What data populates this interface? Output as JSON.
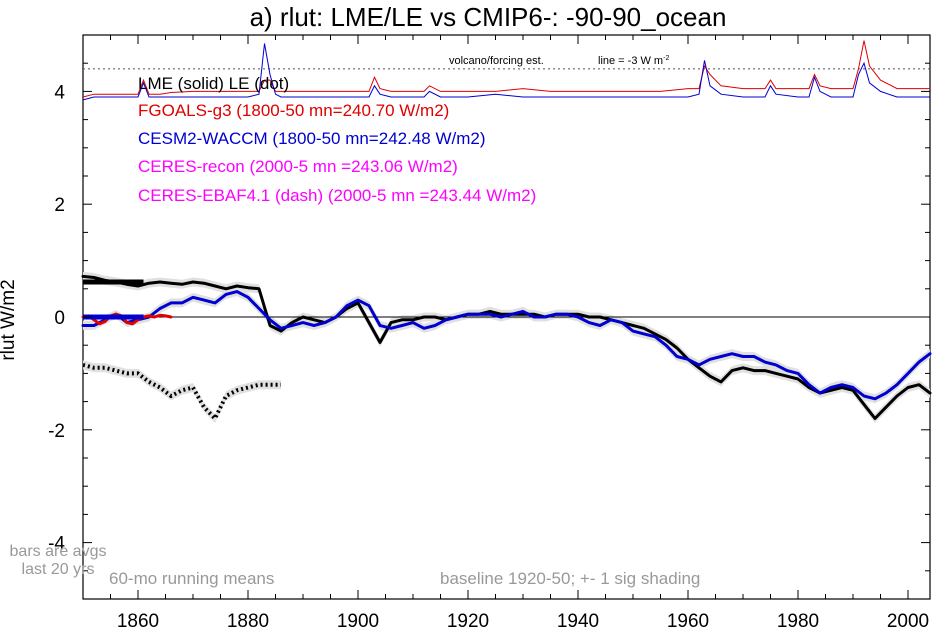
{
  "chart_data": {
    "type": "line",
    "title": "a) rlut: LME/LE vs CMIP6-: -90-90_ocean",
    "ylabel": "rlut W/m2",
    "xlabel": "",
    "xlim": [
      1850,
      2004
    ],
    "ylim": [
      -5,
      5
    ],
    "x_ticks": [
      1860,
      1880,
      1900,
      1920,
      1940,
      1960,
      1980,
      2000
    ],
    "y_ticks": [
      4,
      2,
      0,
      -2,
      -4
    ],
    "y_tick_labels": [
      "4",
      "2",
      "0",
      "-2",
      "-4"
    ],
    "zero_line": true,
    "legend_entries": [
      {
        "text": "LME (solid)   LE (dot)",
        "color": "#000000"
      },
      {
        "text": "FGOALS-g3 (1800-50 mn=240.70 W/m2)",
        "color": "#e00000"
      },
      {
        "text": "CESM2-WACCM (1800-50 mn=242.48 W/m2)",
        "color": "#0000d0"
      },
      {
        "text": "CERES-recon (2000-5 mn =243.06 W/m2)",
        "color": "#ff00ff"
      },
      {
        "text": "CERES-EBAF4.1 (dash) (2000-5 mn =243.44 W/m2)",
        "color": "#ff00ff"
      }
    ],
    "annotations": {
      "volcano": "volcano/forcing est.",
      "line": "line = -3 W m",
      "line_sup": "-2",
      "bars1": "bars are avgs",
      "bars2": "last 20 yrs",
      "running": "60-mo running means",
      "baseline": "baseline 1920-50; +- 1 sig shading"
    },
    "forcing_reference_level": 4.4,
    "series": [
      {
        "name": "LME (solid)",
        "color": "#000000",
        "style": "solid",
        "x": [
          1850,
          1852,
          1854,
          1856,
          1858,
          1860,
          1862,
          1864,
          1866,
          1868,
          1870,
          1872,
          1874,
          1876,
          1878,
          1880,
          1882,
          1884,
          1886,
          1888,
          1890,
          1892,
          1894,
          1896,
          1898,
          1900,
          1902,
          1904,
          1906,
          1908,
          1910,
          1912,
          1914,
          1916,
          1918,
          1920,
          1922,
          1924,
          1926,
          1928,
          1930,
          1932,
          1934,
          1936,
          1938,
          1940,
          1942,
          1944,
          1946,
          1948,
          1950,
          1952,
          1954,
          1956,
          1958,
          1960,
          1962,
          1964,
          1966,
          1968,
          1970,
          1972,
          1974,
          1976,
          1978,
          1980,
          1982,
          1984,
          1986,
          1988,
          1990,
          1992,
          1994,
          1996,
          1998,
          2000,
          2002,
          2004
        ],
        "values": [
          0.72,
          0.7,
          0.65,
          0.62,
          0.58,
          0.55,
          0.6,
          0.62,
          0.6,
          0.58,
          0.62,
          0.6,
          0.55,
          0.5,
          0.55,
          0.52,
          0.5,
          -0.15,
          -0.25,
          -0.1,
          0.0,
          -0.05,
          -0.1,
          0.0,
          0.15,
          0.25,
          -0.1,
          -0.45,
          -0.1,
          -0.05,
          -0.05,
          0.0,
          0.0,
          -0.05,
          0.0,
          0.05,
          0.05,
          0.1,
          0.05,
          0.05,
          0.05,
          0.05,
          0.0,
          0.05,
          0.05,
          0.05,
          0.0,
          0.0,
          -0.05,
          -0.1,
          -0.15,
          -0.2,
          -0.3,
          -0.4,
          -0.55,
          -0.75,
          -0.9,
          -1.05,
          -1.15,
          -0.95,
          -0.9,
          -0.95,
          -0.95,
          -1.0,
          -1.05,
          -1.1,
          -1.25,
          -1.35,
          -1.3,
          -1.25,
          -1.3,
          -1.55,
          -1.8,
          -1.6,
          -1.4,
          -1.25,
          -1.2,
          -1.35
        ]
      },
      {
        "name": "LE (dot)",
        "color": "#000000",
        "style": "dot",
        "x": [
          1850,
          1852,
          1854,
          1856,
          1858,
          1860,
          1862,
          1864,
          1866,
          1868,
          1870,
          1872,
          1874,
          1876,
          1878,
          1880,
          1882,
          1884,
          1886
        ],
        "values": [
          -0.85,
          -0.9,
          -0.9,
          -0.95,
          -1.0,
          -1.0,
          -1.15,
          -1.25,
          -1.4,
          -1.3,
          -1.25,
          -1.6,
          -1.8,
          -1.4,
          -1.3,
          -1.25,
          -1.2,
          -1.2,
          -1.2
        ]
      },
      {
        "name": "CESM2-WACCM",
        "color": "#0000d0",
        "style": "solid",
        "x": [
          1850,
          1852,
          1854,
          1856,
          1858,
          1860,
          1862,
          1864,
          1866,
          1868,
          1870,
          1872,
          1874,
          1876,
          1878,
          1880,
          1882,
          1884,
          1886,
          1888,
          1890,
          1892,
          1894,
          1896,
          1898,
          1900,
          1902,
          1904,
          1906,
          1908,
          1910,
          1912,
          1914,
          1916,
          1918,
          1920,
          1922,
          1924,
          1926,
          1928,
          1930,
          1932,
          1934,
          1936,
          1938,
          1940,
          1942,
          1944,
          1946,
          1948,
          1950,
          1952,
          1954,
          1956,
          1958,
          1960,
          1962,
          1964,
          1966,
          1968,
          1970,
          1972,
          1974,
          1976,
          1978,
          1980,
          1982,
          1984,
          1986,
          1988,
          1990,
          1992,
          1994,
          1996,
          1998,
          2000,
          2002,
          2004
        ],
        "values": [
          -0.15,
          -0.15,
          -0.05,
          0.05,
          -0.1,
          -0.05,
          0.0,
          0.15,
          0.25,
          0.25,
          0.35,
          0.3,
          0.25,
          0.4,
          0.45,
          0.35,
          0.15,
          -0.05,
          -0.2,
          -0.15,
          -0.1,
          -0.15,
          -0.1,
          0.0,
          0.2,
          0.3,
          0.2,
          -0.15,
          -0.2,
          -0.15,
          -0.1,
          -0.2,
          -0.15,
          -0.05,
          0.0,
          0.05,
          0.05,
          0.05,
          0.0,
          0.05,
          0.1,
          0.0,
          0.0,
          0.05,
          0.05,
          0.0,
          -0.1,
          -0.15,
          -0.05,
          -0.1,
          -0.25,
          -0.3,
          -0.35,
          -0.5,
          -0.7,
          -0.75,
          -0.85,
          -0.75,
          -0.7,
          -0.65,
          -0.7,
          -0.7,
          -0.8,
          -0.85,
          -0.95,
          -1.0,
          -1.2,
          -1.35,
          -1.25,
          -1.2,
          -1.25,
          -1.4,
          -1.45,
          -1.35,
          -1.2,
          -1.0,
          -0.8,
          -0.65
        ]
      },
      {
        "name": "FGOALS-g3",
        "color": "#e00000",
        "style": "solid",
        "x": [
          1850,
          1851,
          1852,
          1853,
          1854,
          1855,
          1856,
          1857,
          1858,
          1859,
          1860,
          1861,
          1862,
          1863,
          1864,
          1865,
          1866
        ],
        "values": [
          0.0,
          0.02,
          -0.05,
          -0.12,
          -0.08,
          0.02,
          0.05,
          0.02,
          -0.1,
          -0.12,
          -0.05,
          0.0,
          0.02,
          0.0,
          0.03,
          0.02,
          0.0
        ]
      }
    ],
    "shading_band": 0.08,
    "forcing_series": [
      {
        "name": "FGOALS-g3 forcing",
        "color": "#e00000",
        "x": [
          1850,
          1852,
          1855,
          1858,
          1860,
          1861,
          1862,
          1864,
          1866,
          1870,
          1875,
          1880,
          1882,
          1883,
          1884,
          1885,
          1886,
          1890,
          1895,
          1900,
          1902,
          1903,
          1904,
          1906,
          1910,
          1912,
          1913,
          1915,
          1920,
          1925,
          1930,
          1935,
          1940,
          1945,
          1950,
          1955,
          1960,
          1962,
          1963,
          1964,
          1966,
          1970,
          1974,
          1975,
          1976,
          1980,
          1982,
          1983,
          1984,
          1986,
          1990,
          1991,
          1992,
          1993,
          1995,
          1998,
          2000,
          2004
        ],
        "values": [
          3.9,
          3.95,
          3.95,
          3.95,
          3.95,
          4.2,
          3.95,
          3.95,
          3.98,
          4.0,
          4.0,
          4.0,
          4.0,
          4.2,
          4.2,
          4.0,
          4.0,
          4.0,
          4.0,
          4.0,
          4.0,
          4.25,
          4.05,
          4.0,
          4.0,
          4.0,
          4.1,
          4.0,
          4.0,
          4.0,
          4.05,
          4.0,
          4.0,
          4.0,
          4.0,
          4.0,
          4.05,
          4.05,
          4.45,
          4.3,
          4.1,
          4.05,
          4.05,
          4.2,
          4.05,
          4.05,
          4.05,
          4.3,
          4.1,
          4.05,
          4.05,
          4.4,
          4.9,
          4.45,
          4.2,
          4.05,
          4.05,
          4.05
        ]
      },
      {
        "name": "CESM2-WACCM forcing",
        "color": "#0000d0",
        "x": [
          1850,
          1852,
          1855,
          1858,
          1860,
          1861,
          1862,
          1864,
          1866,
          1870,
          1875,
          1880,
          1882,
          1883,
          1884,
          1885,
          1886,
          1890,
          1895,
          1900,
          1902,
          1903,
          1904,
          1906,
          1910,
          1912,
          1913,
          1915,
          1920,
          1925,
          1930,
          1935,
          1940,
          1945,
          1950,
          1955,
          1960,
          1962,
          1963,
          1964,
          1966,
          1970,
          1974,
          1975,
          1976,
          1980,
          1982,
          1983,
          1984,
          1986,
          1990,
          1991,
          1992,
          1993,
          1995,
          1998,
          2000,
          2004
        ],
        "values": [
          3.85,
          3.9,
          3.9,
          3.9,
          3.9,
          4.15,
          3.9,
          3.9,
          3.9,
          3.9,
          3.9,
          3.9,
          3.95,
          4.85,
          4.3,
          3.95,
          3.9,
          3.9,
          3.9,
          3.9,
          3.9,
          4.1,
          3.95,
          3.9,
          3.9,
          3.9,
          4.0,
          3.9,
          3.9,
          3.95,
          3.9,
          3.9,
          3.9,
          3.9,
          3.9,
          3.9,
          3.9,
          3.95,
          4.55,
          4.1,
          3.95,
          3.9,
          3.9,
          4.1,
          3.95,
          3.9,
          3.9,
          4.25,
          4.0,
          3.9,
          3.9,
          4.3,
          4.5,
          4.15,
          4.0,
          3.9,
          3.9,
          3.9
        ]
      }
    ],
    "bars": [
      {
        "series": "LME",
        "color": "#000000",
        "value": 0.62,
        "x_range": [
          1850,
          1861
        ]
      },
      {
        "series": "FGOALS-g3",
        "color": "#e00000",
        "value": 0.0,
        "x_range": [
          1850,
          1854
        ]
      },
      {
        "series": "CESM2-WACCM",
        "color": "#0000d0",
        "value": 0.0,
        "x_range": [
          1850,
          1861
        ]
      }
    ]
  }
}
